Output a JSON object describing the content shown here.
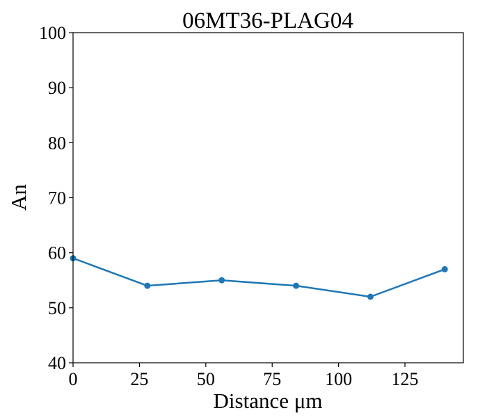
{
  "chart_data": {
    "type": "line",
    "title": "06MT36-PLAG04",
    "xlabel": "Distance μm",
    "ylabel": "An",
    "xlim": [
      0,
      147
    ],
    "ylim": [
      40,
      100
    ],
    "x_ticks": [
      0,
      25,
      50,
      75,
      100,
      125
    ],
    "y_ticks": [
      40,
      50,
      60,
      70,
      80,
      90,
      100
    ],
    "grid": false,
    "legend": "none",
    "series": [
      {
        "color": "#1f77b4",
        "marker": "circle",
        "x": [
          0,
          28,
          56,
          84,
          112,
          140
        ],
        "y": [
          59,
          54,
          55,
          54,
          52,
          57
        ]
      }
    ]
  }
}
